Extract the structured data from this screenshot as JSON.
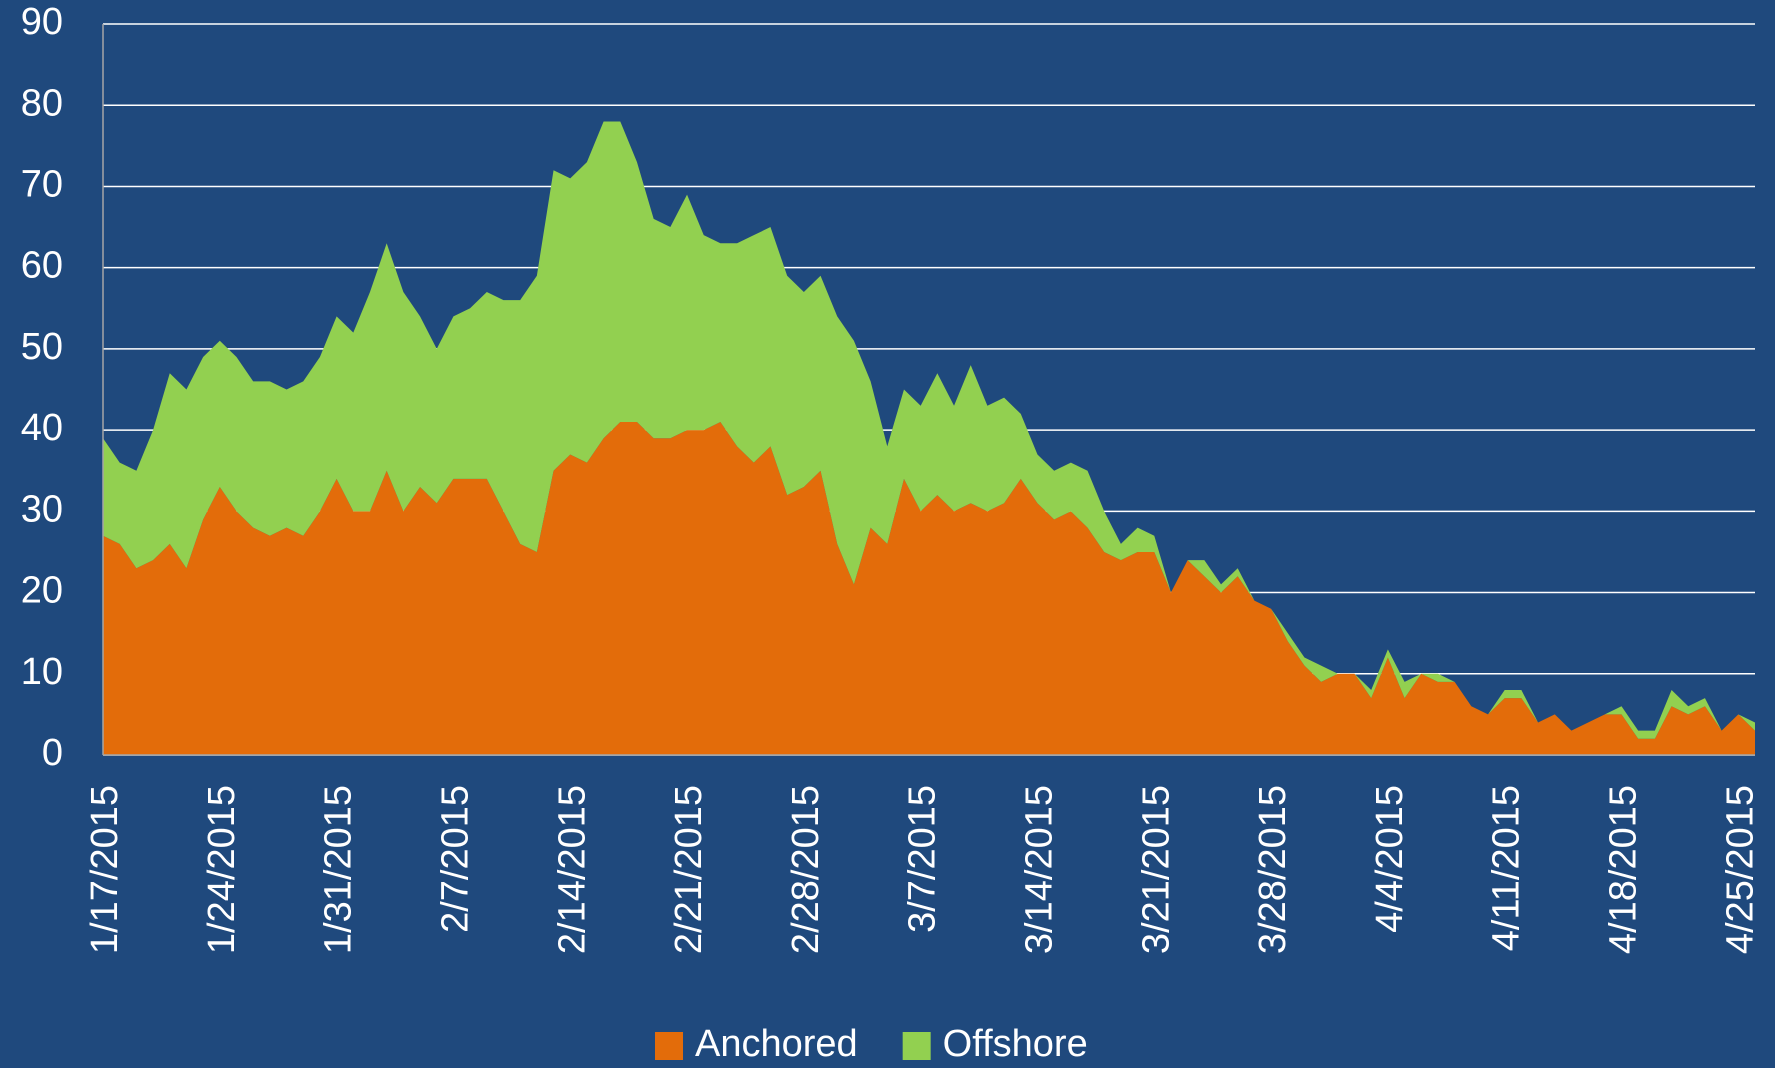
{
  "chart_data": {
    "type": "stacked_area",
    "categories": [
      "1/17/2015",
      null,
      null,
      null,
      null,
      null,
      null,
      "1/24/2015",
      null,
      null,
      null,
      null,
      null,
      null,
      "1/31/2015",
      null,
      null,
      null,
      null,
      null,
      null,
      "2/7/2015",
      null,
      null,
      null,
      null,
      null,
      null,
      "2/14/2015",
      null,
      null,
      null,
      null,
      null,
      null,
      "2/21/2015",
      null,
      null,
      null,
      null,
      null,
      null,
      "2/28/2015",
      null,
      null,
      null,
      null,
      null,
      null,
      "3/7/2015",
      null,
      null,
      null,
      null,
      null,
      null,
      "3/14/2015",
      null,
      null,
      null,
      null,
      null,
      null,
      "3/21/2015",
      null,
      null,
      null,
      null,
      null,
      null,
      "3/28/2015",
      null,
      null,
      null,
      null,
      null,
      null,
      "4/4/2015",
      null,
      null,
      null,
      null,
      null,
      null,
      "4/11/2015",
      null,
      null,
      null,
      null,
      null,
      null,
      "4/18/2015",
      null,
      null,
      null,
      null,
      null,
      null,
      "4/25/2015",
      null
    ],
    "series": [
      {
        "name": "Anchored",
        "color": "#e36c0a",
        "values": [
          27,
          26,
          23,
          24,
          26,
          23,
          29,
          33,
          30,
          28,
          27,
          28,
          27,
          30,
          34,
          30,
          30,
          35,
          30,
          33,
          31,
          34,
          34,
          34,
          30,
          26,
          25,
          35,
          37,
          36,
          39,
          41,
          41,
          39,
          39,
          40,
          40,
          41,
          38,
          36,
          38,
          32,
          33,
          35,
          26,
          21,
          28,
          26,
          34,
          30,
          32,
          30,
          31,
          30,
          31,
          34,
          31,
          29,
          30,
          28,
          25,
          24,
          25,
          25,
          20,
          24,
          22,
          20,
          22,
          19,
          18,
          14,
          11,
          9,
          10,
          10,
          7,
          12,
          7,
          10,
          9,
          9,
          6,
          5,
          7,
          7,
          4,
          5,
          3,
          4,
          5,
          5,
          2,
          2,
          6,
          5,
          6,
          3,
          5,
          3
        ]
      },
      {
        "name": "Offshore",
        "color": "#92d050",
        "values": [
          12,
          10,
          12,
          16,
          21,
          22,
          20,
          18,
          19,
          18,
          19,
          17,
          19,
          19,
          20,
          22,
          27,
          28,
          27,
          21,
          19,
          20,
          21,
          23,
          26,
          30,
          34,
          37,
          34,
          37,
          39,
          37,
          32,
          27,
          26,
          29,
          24,
          22,
          25,
          28,
          27,
          27,
          24,
          24,
          28,
          30,
          18,
          12,
          11,
          13,
          15,
          13,
          17,
          13,
          13,
          8,
          6,
          6,
          6,
          7,
          5,
          2,
          3,
          2,
          0,
          0,
          2,
          1,
          1,
          0,
          0,
          1,
          1,
          2,
          0,
          0,
          1,
          1,
          2,
          0,
          1,
          0,
          0,
          0,
          1,
          1,
          0,
          0,
          0,
          0,
          0,
          1,
          1,
          1,
          2,
          1,
          1,
          0,
          0,
          1
        ]
      }
    ],
    "ylim": [
      0,
      90
    ],
    "yticks": [
      0,
      10,
      20,
      30,
      40,
      50,
      60,
      70,
      80,
      90
    ],
    "grid": true,
    "legend": "bottom"
  }
}
